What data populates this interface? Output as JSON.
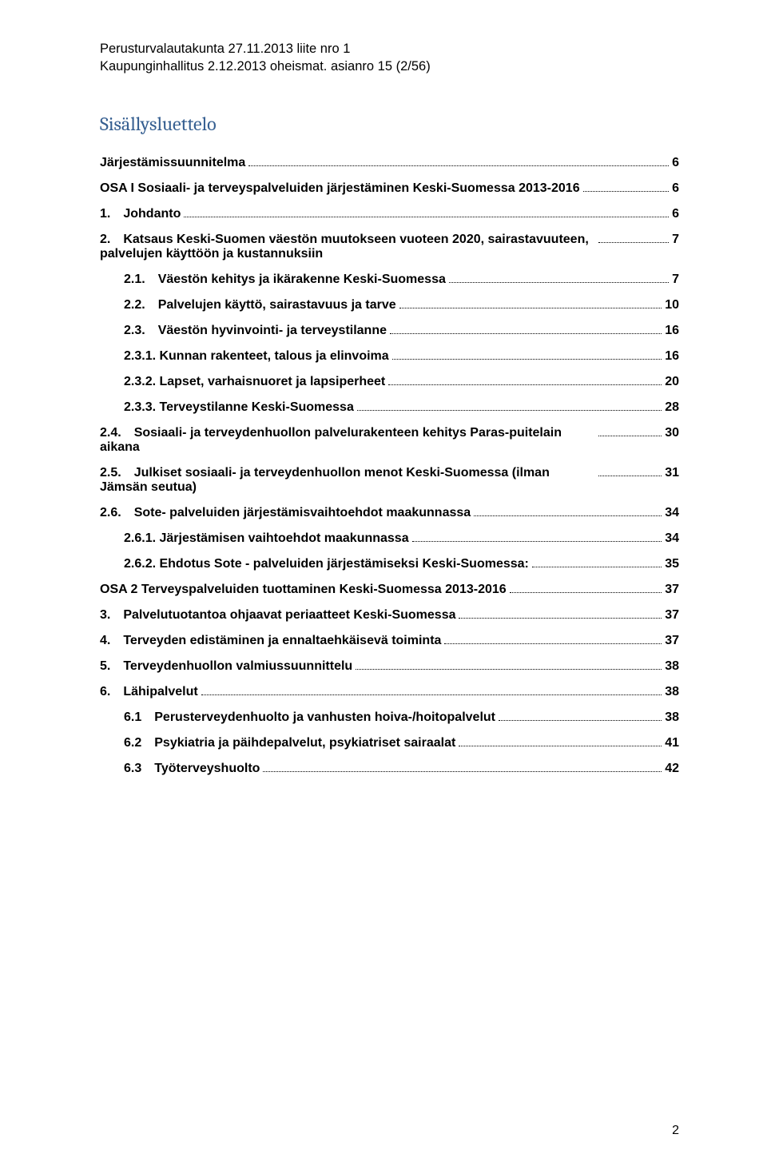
{
  "header": {
    "line1": "Perusturvalautakunta 27.11.2013 liite nro 1",
    "line2": "Kaupunginhallitus 2.12.2013 oheismat. asianro 15 (2/56)"
  },
  "toc_title": "Sisällysluettelo",
  "entries": [
    {
      "level": 0,
      "label": "Järjestämissuunnitelma",
      "page": "6"
    },
    {
      "level": 0,
      "label": "OSA I Sosiaali- ja terveyspalveluiden järjestäminen Keski-Suomessa 2013-2016",
      "page": "6"
    },
    {
      "level": 1,
      "label": "1. Johdanto",
      "page": "6"
    },
    {
      "level": 1,
      "label": "2. Katsaus Keski-Suomen väestön muutokseen vuoteen 2020, sairastavuuteen, palvelujen käyttöön ja kustannuksiin",
      "page": "7"
    },
    {
      "level": 2,
      "label": "2.1. Väestön kehitys ja ikärakenne Keski-Suomessa",
      "page": "7"
    },
    {
      "level": 2,
      "label": "2.2. Palvelujen käyttö, sairastavuus ja tarve",
      "page": "10"
    },
    {
      "level": 2,
      "label": "2.3. Väestön hyvinvointi- ja terveystilanne",
      "page": "16"
    },
    {
      "level": 2,
      "label": "2.3.1. Kunnan rakenteet, talous ja elinvoima",
      "page": "16"
    },
    {
      "level": 2,
      "label": "2.3.2. Lapset, varhaisnuoret ja lapsiperheet",
      "page": "20"
    },
    {
      "level": 2,
      "label": "2.3.3. Terveystilanne Keski-Suomessa",
      "page": "28"
    },
    {
      "level": 1,
      "label": "2.4. Sosiaali- ja terveydenhuollon palvelurakenteen kehitys Paras-puitelain aikana",
      "page": "30"
    },
    {
      "level": 1,
      "label": "2.5. Julkiset sosiaali- ja terveydenhuollon menot Keski-Suomessa (ilman Jämsän seutua)",
      "page": "31"
    },
    {
      "level": 1,
      "label": "2.6. Sote- palveluiden järjestämisvaihtoehdot maakunnassa",
      "page": "34"
    },
    {
      "level": 2,
      "label": "2.6.1. Järjestämisen vaihtoehdot maakunnassa",
      "page": "34"
    },
    {
      "level": 2,
      "label": "2.6.2. Ehdotus Sote - palveluiden järjestämiseksi Keski-Suomessa:",
      "page": "35"
    },
    {
      "level": 0,
      "label": "OSA 2 Terveyspalveluiden tuottaminen Keski-Suomessa 2013-2016",
      "page": "37"
    },
    {
      "level": 1,
      "label": "3. Palvelutuotantoa ohjaavat periaatteet Keski-Suomessa",
      "page": "37"
    },
    {
      "level": 1,
      "label": "4. Terveyden edistäminen ja ennaltaehkäisevä toiminta",
      "page": "37"
    },
    {
      "level": 1,
      "label": "5. Terveydenhuollon valmiussuunnittelu",
      "page": "38"
    },
    {
      "level": 1,
      "label": "6. Lähipalvelut",
      "page": "38"
    },
    {
      "level": 2,
      "label": "6.1 Perusterveydenhuolto ja vanhusten hoiva-/hoitopalvelut",
      "page": "38"
    },
    {
      "level": 2,
      "label": "6.2 Psykiatria ja päihdepalvelut, psykiatriset sairaalat",
      "page": "41"
    },
    {
      "level": 2,
      "label": "6.3 Työterveyshuolto",
      "page": "42"
    }
  ],
  "page_number": "2"
}
